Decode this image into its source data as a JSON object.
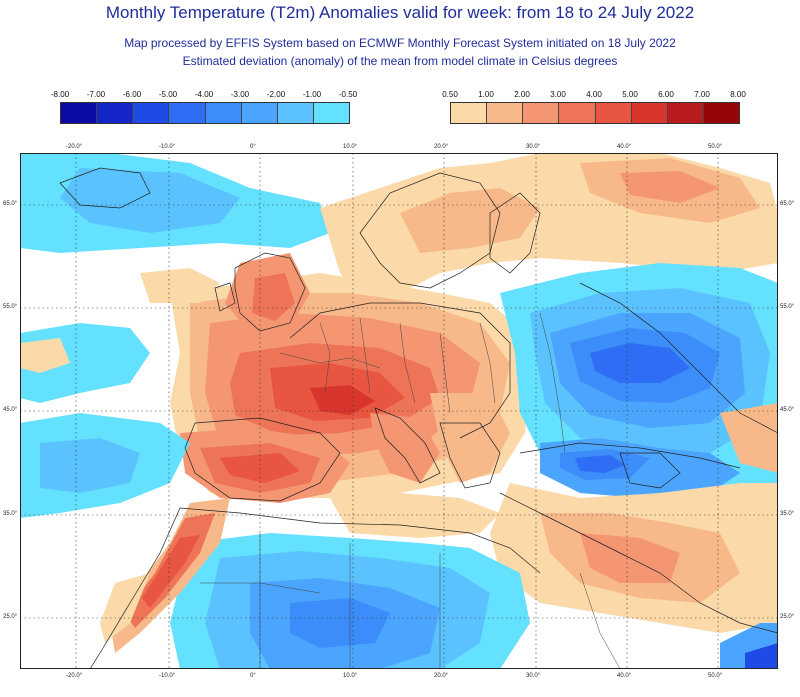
{
  "header": {
    "title": "Monthly Temperature (T2m) Anomalies valid for week: from 18 to 24 July 2022",
    "subtitle1": "Map processed by EFFIS System based on ECMWF Monthly Forecast System initiated on 18 July 2022",
    "subtitle2": "Estimated deviation (anomaly) of the mean from model climate in Celsius degrees"
  },
  "legend_cold": {
    "labels": [
      "-8.00",
      "-7.00",
      "-6.00",
      "-5.00",
      "-4.00",
      "-3.00",
      "-2.00",
      "-1.00",
      "-0.50"
    ],
    "colors": [
      "#0a0aa5",
      "#1426c8",
      "#1e4be6",
      "#2d6ef5",
      "#3c8cfa",
      "#4ba5ff",
      "#5ac3ff",
      "#64e1ff"
    ]
  },
  "legend_warm": {
    "labels": [
      "0.50",
      "1.00",
      "2.00",
      "3.00",
      "4.00",
      "5.00",
      "6.00",
      "7.00",
      "8.00"
    ],
    "colors": [
      "#fcd9a8",
      "#f8b98a",
      "#f49672",
      "#ee7458",
      "#e85540",
      "#d8362c",
      "#b81c1c",
      "#960606"
    ]
  },
  "map": {
    "top_lon_labels": [
      "-20.0°",
      "-10.0°",
      "0°",
      "10.0°",
      "20.0°",
      "30.0°",
      "40.0°",
      "50.0°"
    ],
    "bottom_lon_labels": [
      "-20.0°",
      "-10.0°",
      "0°",
      "10.0°",
      "20.0°",
      "30.0°",
      "40.0°",
      "50.0°"
    ],
    "left_lat_labels": [
      "65.0°",
      "55.0°",
      "45.0°",
      "35.0°",
      "25.0°"
    ],
    "right_lat_labels": [
      "65.0°",
      "55.0°",
      "45.0°",
      "35.0°",
      "25.0°"
    ],
    "background_color": "#ffffff",
    "land_neutral_color": "#ffffff"
  }
}
